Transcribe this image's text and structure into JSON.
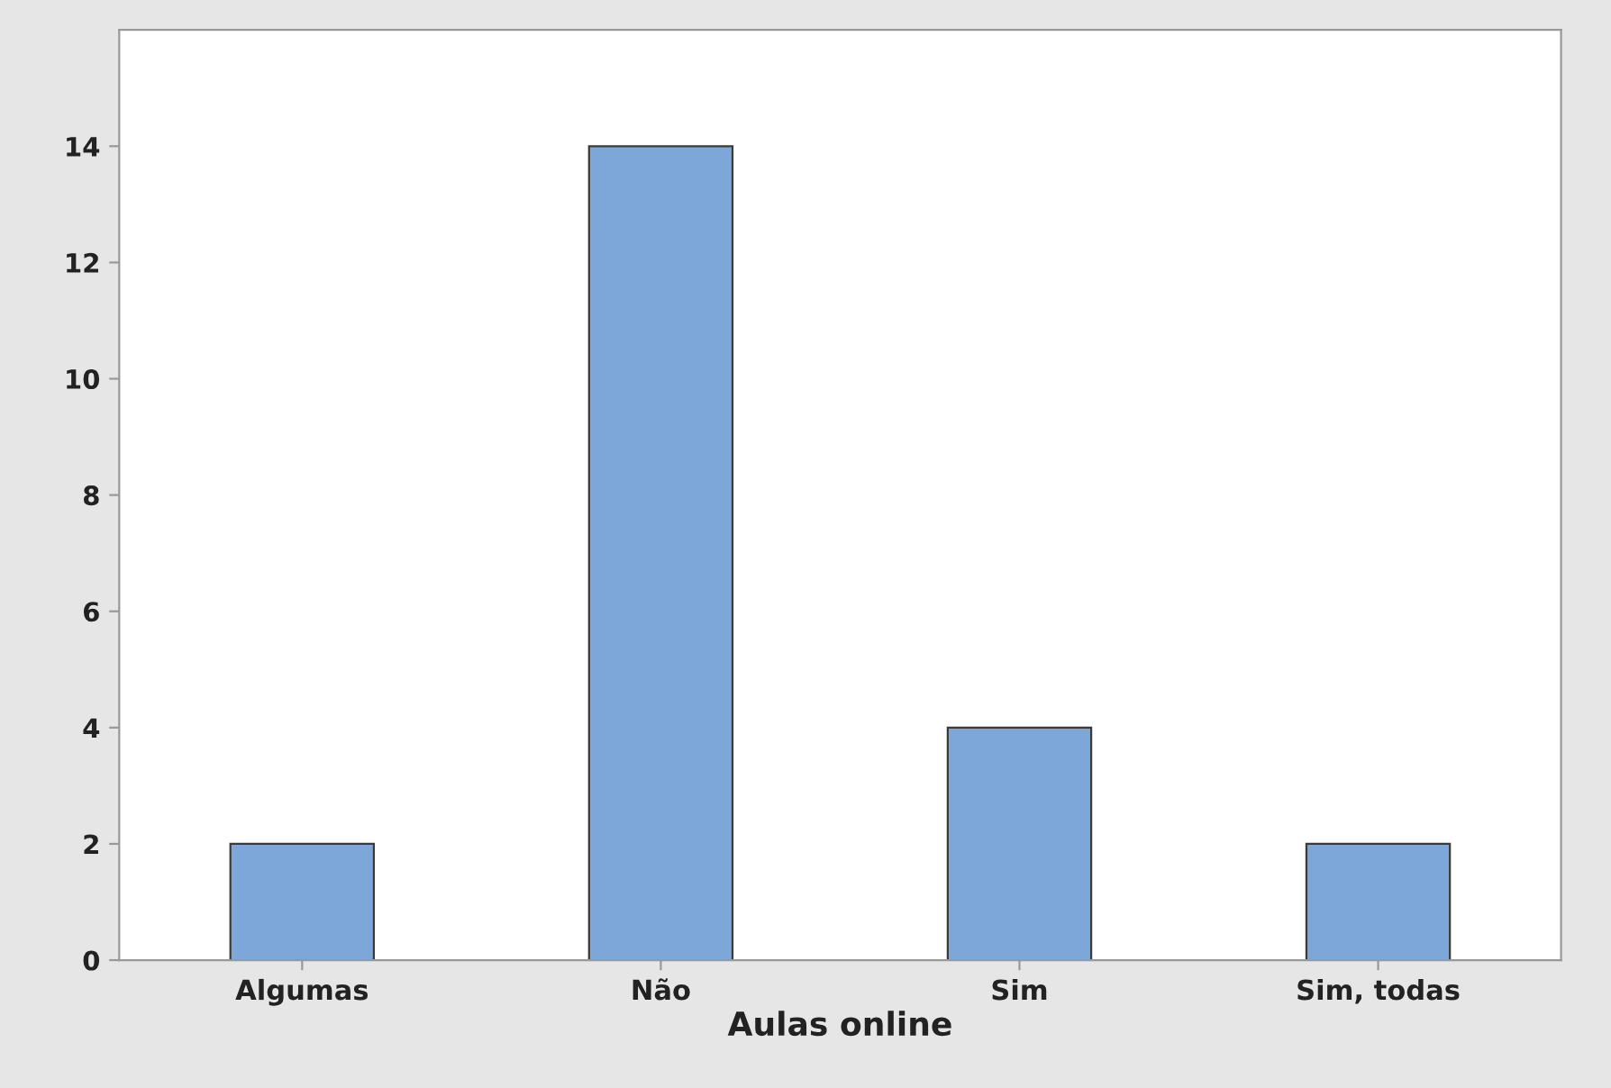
{
  "chart_data": {
    "type": "bar",
    "xlabel": "Aulas online",
    "categories": [
      "Algumas",
      "Não",
      "Sim",
      "Sim, todas"
    ],
    "values": [
      2,
      14,
      4,
      2
    ],
    "color": "#7da7d9",
    "ylim": [
      0,
      16
    ],
    "yticks": [
      0,
      2,
      4,
      6,
      8,
      10,
      12,
      14
    ],
    "grid": false
  }
}
